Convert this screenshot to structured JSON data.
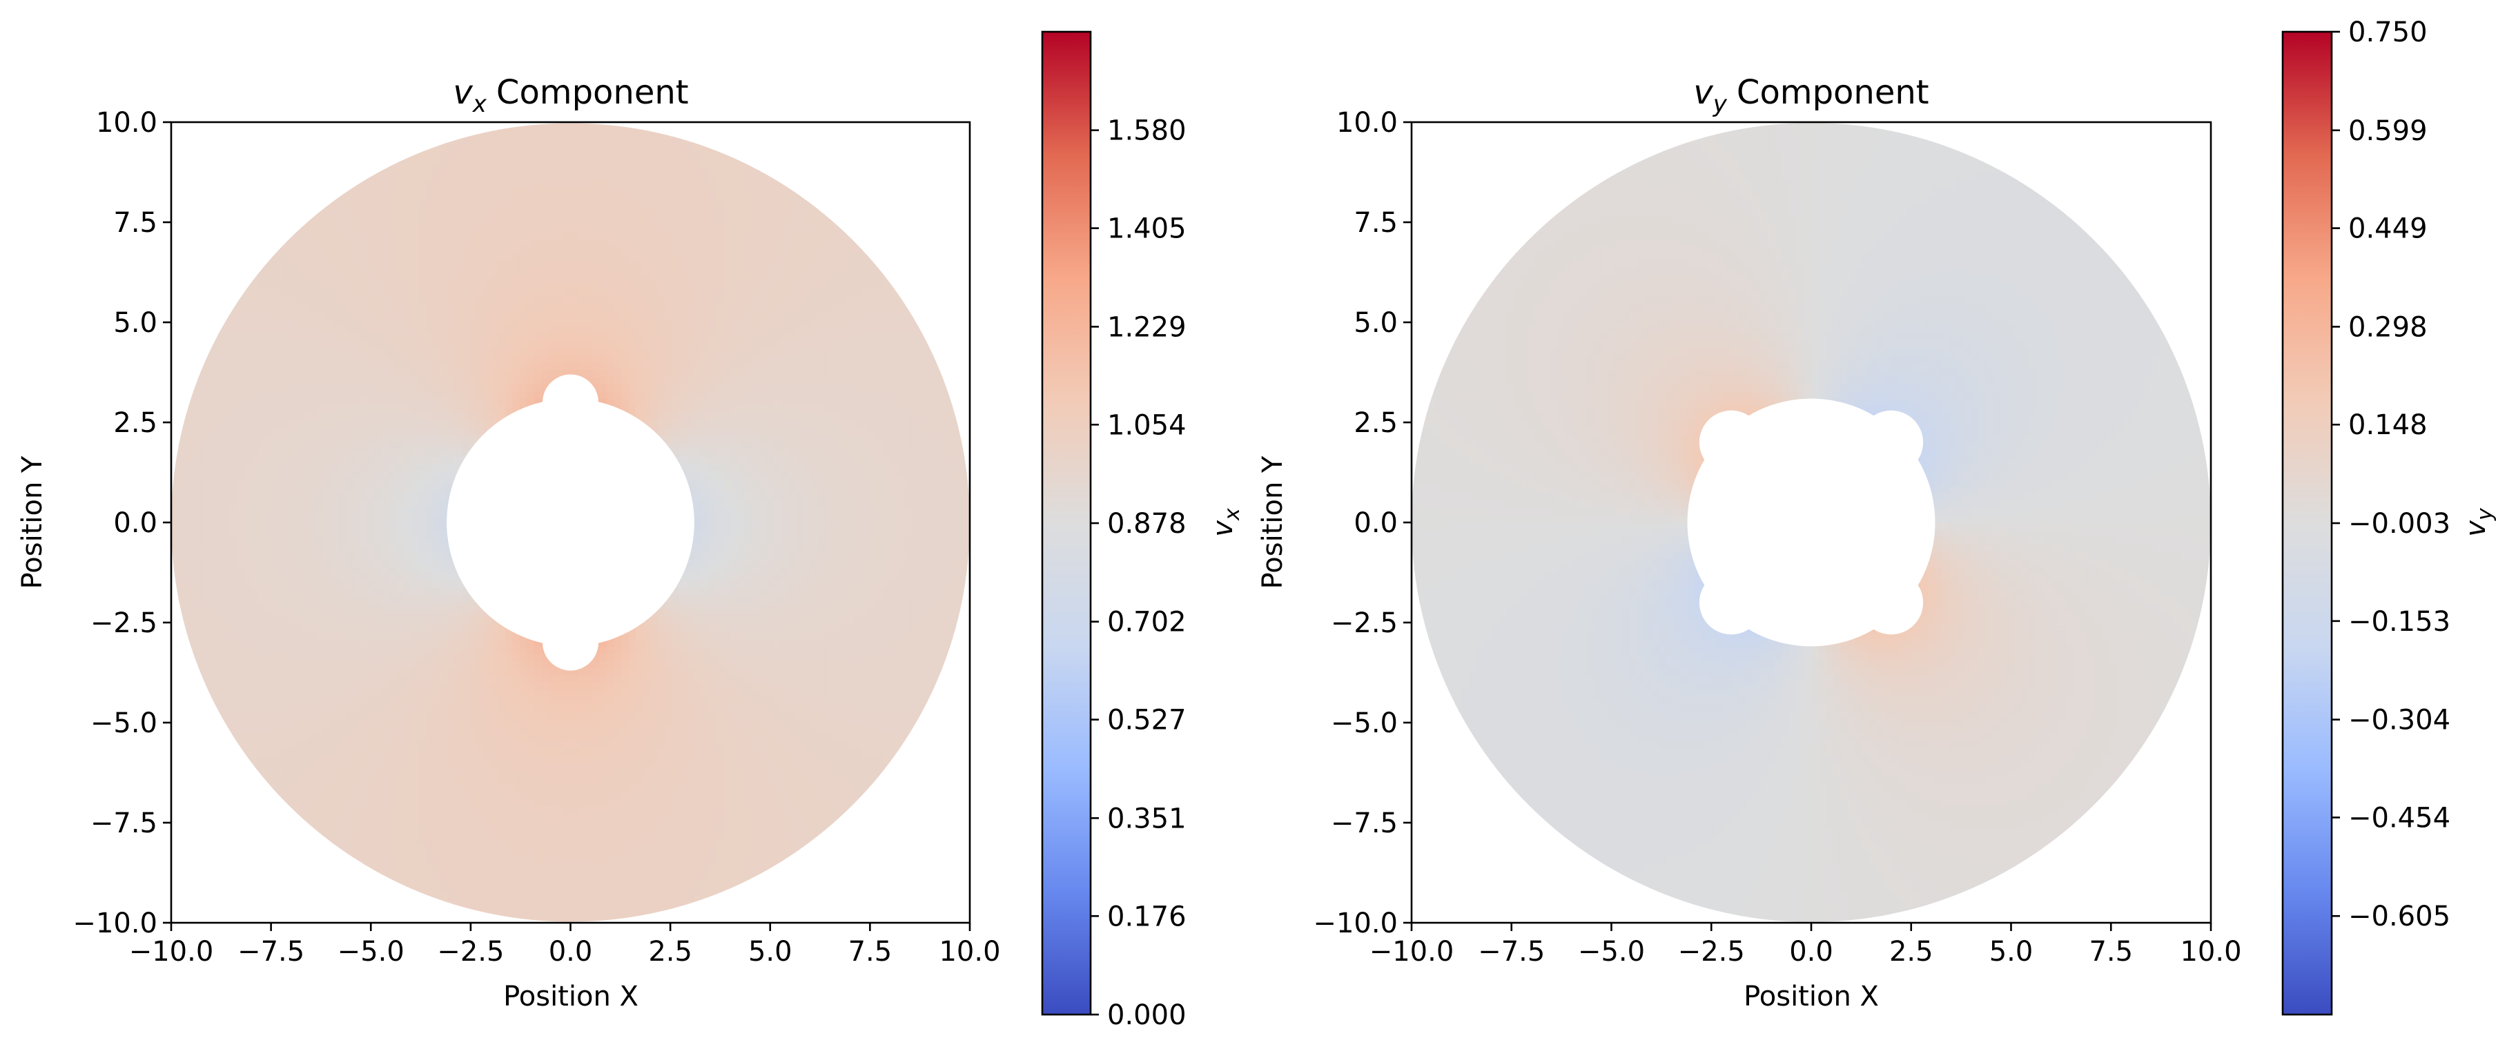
{
  "colormap": {
    "name": "coolwarm",
    "stops": [
      "#3b4cc0",
      "#6788ee",
      "#9abbff",
      "#c9d7f0",
      "#dddddd",
      "#f2cbb7",
      "#f7a889",
      "#e26952",
      "#b40426"
    ]
  },
  "chart_data": [
    {
      "type": "heatmap",
      "title_symbol": "v",
      "title_subscript": "x",
      "title_text": "Component",
      "xlabel": "Position X",
      "ylabel": "Position Y",
      "xlim": [
        -10,
        10
      ],
      "ylim": [
        -10,
        10
      ],
      "x_ticks": [
        "−10.0",
        "−7.5",
        "−5.0",
        "−2.5",
        "0.0",
        "2.5",
        "5.0",
        "7.5",
        "10.0"
      ],
      "y_ticks": [
        "−10.0",
        "−7.5",
        "−5.0",
        "−2.5",
        "0.0",
        "2.5",
        "5.0",
        "7.5",
        "10.0"
      ],
      "domain": {
        "outer_radius": 10,
        "inner_radius": 3.1,
        "lobe_radius": 0.7,
        "lobe_centers": [
          [
            0,
            3.0
          ],
          [
            0,
            -3.0
          ]
        ]
      },
      "field": "vx",
      "grid": false,
      "colorbar": {
        "label_symbol": "v",
        "label_subscript": "x",
        "range": [
          0.0,
          1.756
        ],
        "ticks": [
          0.0,
          0.176,
          0.351,
          0.527,
          0.702,
          0.878,
          1.054,
          1.229,
          1.405,
          1.58
        ],
        "tick_labels": [
          "0.000",
          "0.176",
          "0.351",
          "0.527",
          "0.702",
          "0.878",
          "1.054",
          "1.229",
          "1.405",
          "1.580"
        ]
      }
    },
    {
      "type": "heatmap",
      "title_symbol": "v",
      "title_subscript": "y",
      "title_text": "Component",
      "xlabel": "Position X",
      "ylabel": "Position Y",
      "xlim": [
        -10,
        10
      ],
      "ylim": [
        -10,
        10
      ],
      "x_ticks": [
        "−10.0",
        "−7.5",
        "−5.0",
        "−2.5",
        "0.0",
        "2.5",
        "5.0",
        "7.5",
        "10.0"
      ],
      "y_ticks": [
        "−10.0",
        "−7.5",
        "−5.0",
        "−2.5",
        "0.0",
        "2.5",
        "5.0",
        "7.5",
        "10.0"
      ],
      "domain": {
        "outer_radius": 10,
        "inner_radius": 3.1,
        "lobe_radius": 0.8,
        "lobe_centers": [
          [
            2.0,
            2.0
          ],
          [
            -2.0,
            2.0
          ],
          [
            2.0,
            -2.0
          ],
          [
            -2.0,
            -2.0
          ]
        ]
      },
      "field": "vy",
      "grid": false,
      "colorbar": {
        "label_symbol": "v",
        "label_subscript": "y",
        "range": [
          -0.756,
          0.75
        ],
        "ticks": [
          -0.605,
          -0.454,
          -0.304,
          -0.153,
          -0.003,
          0.148,
          0.298,
          0.449,
          0.599,
          0.75
        ],
        "tick_labels": [
          "−0.605",
          "−0.454",
          "−0.304",
          "−0.153",
          "−0.003",
          "0.148",
          "0.298",
          "0.449",
          "0.599",
          "0.750"
        ]
      }
    }
  ]
}
